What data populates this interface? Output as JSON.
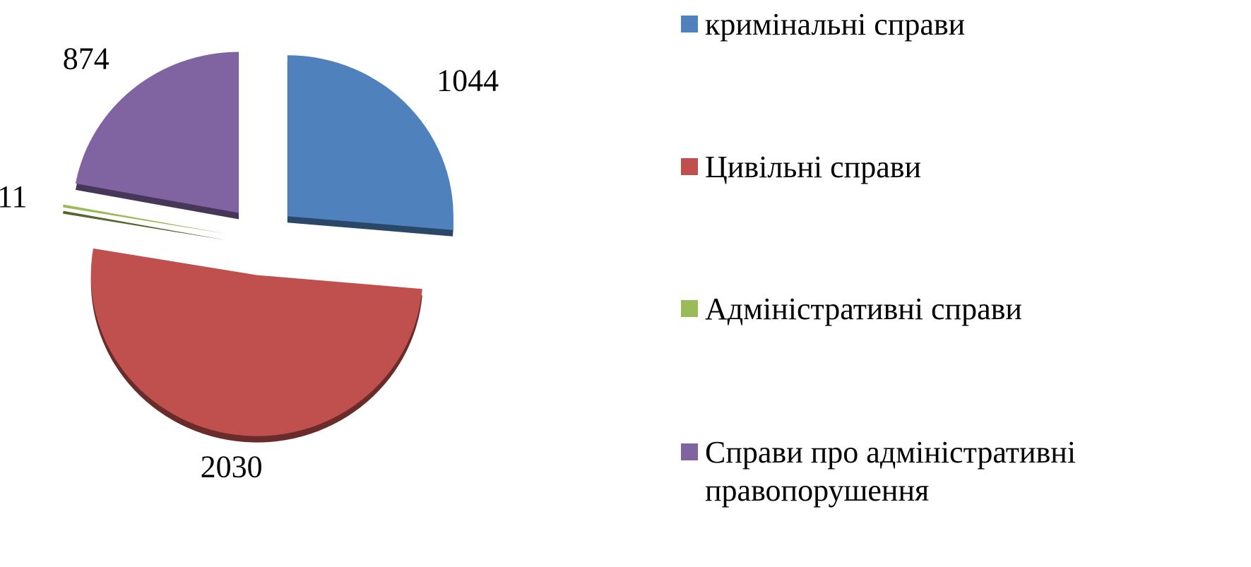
{
  "chart_data": {
    "type": "pie",
    "categories": [
      "кримінальні справи",
      "Цивільні справи",
      "Адміністративні справи",
      "Справи про адміністративні правопорушення"
    ],
    "values": [
      1044,
      2030,
      11,
      874
    ],
    "colors": [
      "#4f81bd",
      "#c0504d",
      "#9bbb59",
      "#8064a2"
    ],
    "legend": "right"
  }
}
